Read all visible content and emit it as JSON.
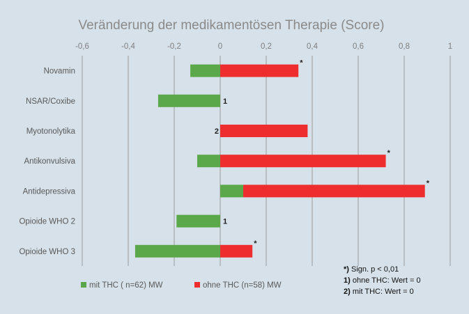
{
  "chart_data": {
    "type": "bar",
    "orientation": "horizontal",
    "stacking": "diverging",
    "title": "Veränderung der medikamentösen Therapie (Score)",
    "xlim": [
      -0.6,
      1.0
    ],
    "x_ticks": [
      "-0,6",
      "-0,4",
      "-0,2",
      "0",
      "0,2",
      "0,4",
      "0,6",
      "0,8",
      "1"
    ],
    "grid": "vertical",
    "legend_position": "bottom-left",
    "categories": [
      "Novamin",
      "NSAR/Coxibe",
      "Myotonolytika",
      "Antikonvulsiva",
      "Antidepressiva",
      "Opioide WHO 2",
      "Opioide WHO 3"
    ],
    "series": [
      {
        "name": "mit THC ( n=62) MW",
        "color": "#5ba84a",
        "values": [
          -0.13,
          -0.27,
          0,
          -0.1,
          0.1,
          -0.19,
          -0.37
        ]
      },
      {
        "name": "ohne THC (n=58) MW",
        "color": "#ee2e2e",
        "values": [
          0.34,
          0,
          0.38,
          0.72,
          0.79,
          0,
          0.14
        ]
      }
    ],
    "annotations": [
      "*",
      "1",
      "2",
      "*",
      "*",
      "1",
      "*"
    ],
    "footnotes": [
      {
        "marker": "*)",
        "text": " Sign. p < 0,01"
      },
      {
        "marker": "1)",
        "text": " ohne THC: Wert = 0"
      },
      {
        "marker": "2)",
        "text": " mit THC: Wert = 0"
      }
    ]
  }
}
